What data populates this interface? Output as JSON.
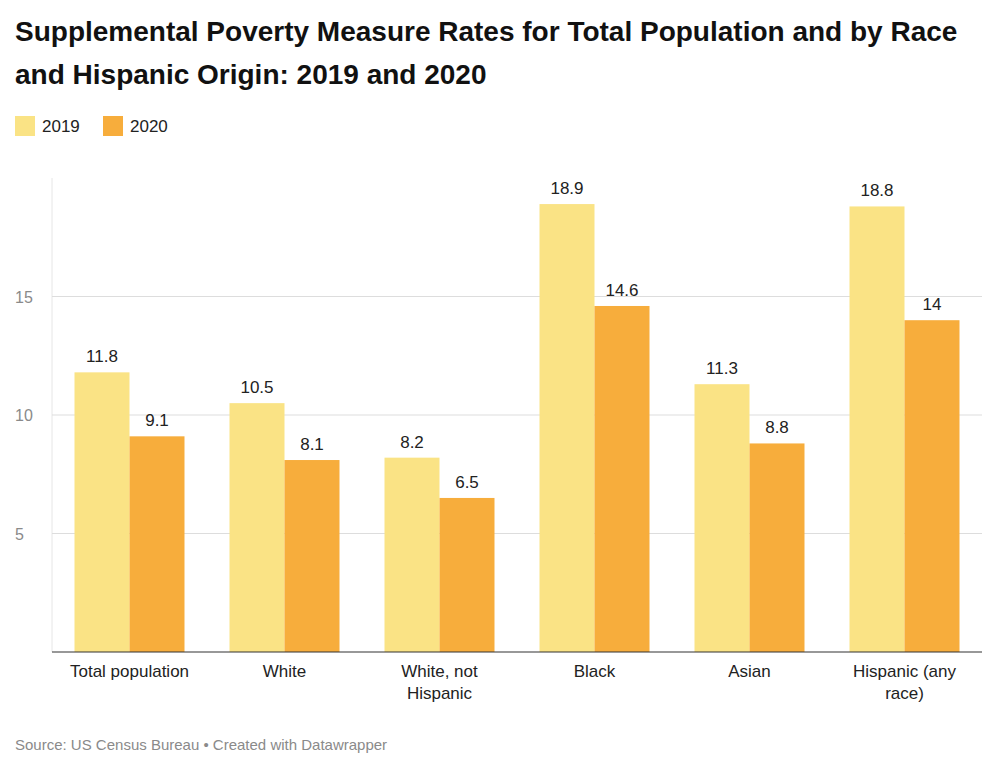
{
  "chart_data": {
    "type": "bar",
    "title": "Supplemental Poverty Measure Rates for Total Population and by Race and Hispanic Origin: 2019 and 2020",
    "source": "Source: US Census Bureau • Created with Datawrapper",
    "categories": [
      "Total population",
      "White",
      "White, not Hispanic",
      "Black",
      "Asian",
      "Hispanic (any race)"
    ],
    "series": [
      {
        "name": "2019",
        "color": "#fae385",
        "values": [
          11.8,
          10.5,
          8.2,
          18.9,
          11.3,
          18.8
        ]
      },
      {
        "name": "2020",
        "color": "#f7ad3c",
        "values": [
          9.1,
          8.1,
          6.5,
          14.6,
          8.8,
          14
        ]
      }
    ],
    "ylim": [
      0,
      20
    ],
    "yticks": [
      5,
      10,
      15
    ],
    "grid": true,
    "data_labels": true,
    "legend": "top-left"
  }
}
